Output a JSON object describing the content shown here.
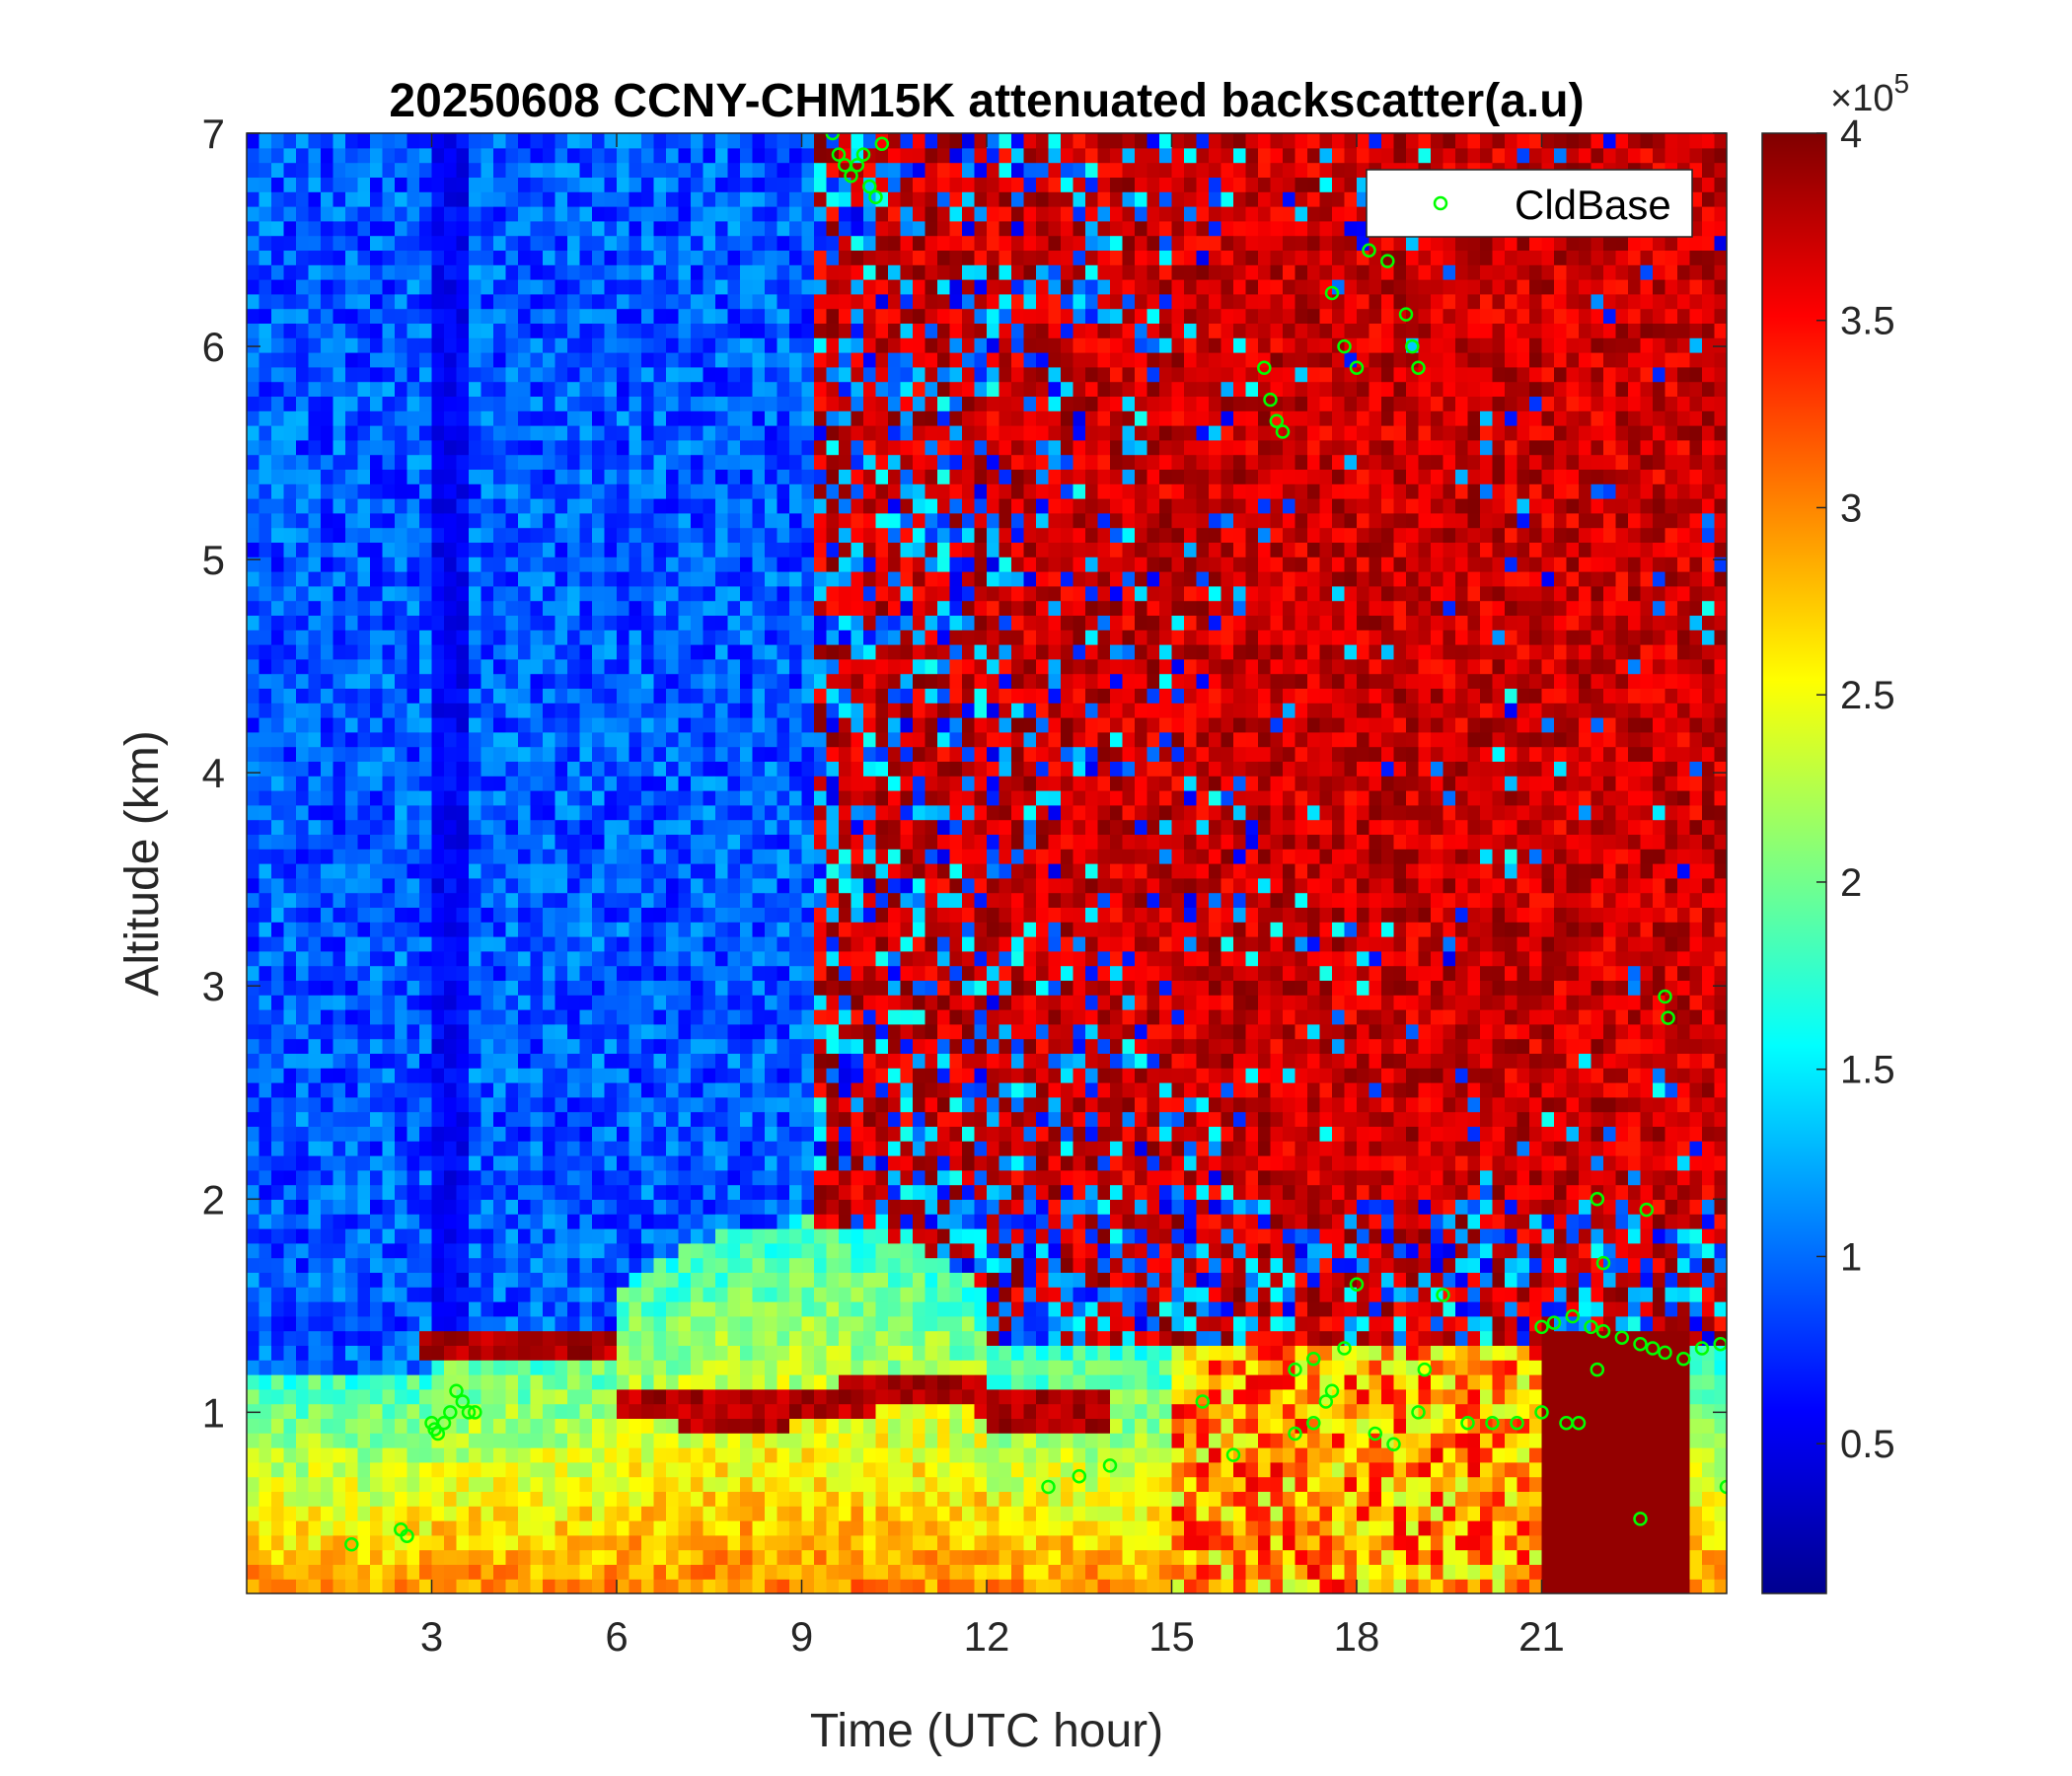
{
  "chart_data": {
    "type": "heatmap",
    "title": "20250608 CCNY-CHM15K attenuated backscatter(a.u)",
    "xlabel": "Time (UTC hour)",
    "ylabel": "Altitude (km)",
    "xlim": [
      0,
      24
    ],
    "ylim": [
      0.15,
      7
    ],
    "x_ticks": [
      3,
      6,
      9,
      12,
      15,
      18,
      21
    ],
    "x_tick_labels": [
      "3",
      "6",
      "9",
      "12",
      "15",
      "18",
      "21"
    ],
    "y_ticks": [
      1,
      2,
      3,
      4,
      5,
      6,
      7
    ],
    "y_tick_labels": [
      "1",
      "2",
      "3",
      "4",
      "5",
      "6",
      "7"
    ],
    "colorbar": {
      "colormap": "jet",
      "range": [
        0.1,
        4
      ],
      "ticks": [
        0.5,
        1,
        1.5,
        2,
        2.5,
        3,
        3.5,
        4
      ],
      "tick_labels": [
        "0.5",
        "1",
        "1.5",
        "2",
        "2.5",
        "3",
        "3.5",
        "4"
      ],
      "exponent_label": "×10",
      "exponent": "5"
    },
    "legend": {
      "location": "top-right",
      "entries": [
        "CldBase"
      ]
    },
    "series": [
      {
        "name": "CldBase",
        "marker": "circle",
        "color": "#00ff00",
        "x": [
          1.7,
          2.5,
          2.6,
          3.0,
          3.05,
          3.1,
          3.2,
          3.3,
          3.4,
          3.5,
          3.6,
          3.7,
          9.5,
          9.6,
          9.7,
          9.8,
          9.9,
          10.0,
          10.1,
          10.2,
          10.3,
          13.0,
          13.5,
          14.0,
          15.5,
          16.0,
          16.5,
          16.6,
          16.7,
          16.8,
          17.0,
          17.3,
          17.5,
          17.6,
          17.8,
          18.0,
          18.2,
          18.5,
          18.8,
          18.9,
          19.0,
          19.1,
          17.0,
          17.3,
          17.6,
          17.8,
          18.0,
          18.3,
          18.6,
          19.0,
          19.4,
          19.8,
          20.2,
          20.6,
          21.0,
          21.4,
          21.6,
          21.0,
          21.2,
          21.5,
          21.8,
          22.0,
          22.3,
          22.6,
          22.8,
          23.0,
          23.3,
          23.6,
          23.9,
          21.9,
          22.0,
          21.9,
          22.6,
          22.7,
          23.0,
          23.05,
          24.0
        ],
        "y": [
          0.38,
          0.45,
          0.42,
          0.95,
          0.92,
          0.9,
          0.95,
          1.0,
          1.1,
          1.05,
          1.0,
          1.0,
          7.0,
          6.9,
          6.85,
          6.8,
          6.85,
          6.9,
          6.75,
          6.7,
          6.95,
          0.65,
          0.7,
          0.75,
          1.05,
          0.8,
          5.9,
          5.75,
          5.65,
          5.6,
          0.9,
          0.95,
          1.05,
          6.25,
          6.0,
          5.9,
          6.45,
          6.4,
          6.15,
          6.0,
          5.9,
          1.2,
          1.2,
          1.25,
          1.1,
          1.3,
          1.6,
          0.9,
          0.85,
          1.0,
          1.55,
          0.95,
          0.95,
          0.95,
          1.0,
          0.95,
          0.95,
          1.4,
          1.42,
          1.45,
          1.4,
          1.38,
          1.35,
          1.32,
          1.3,
          1.28,
          1.25,
          1.3,
          1.32,
          2.0,
          1.7,
          1.2,
          0.5,
          1.95,
          2.95,
          2.85,
          0.65
        ]
      }
    ]
  }
}
